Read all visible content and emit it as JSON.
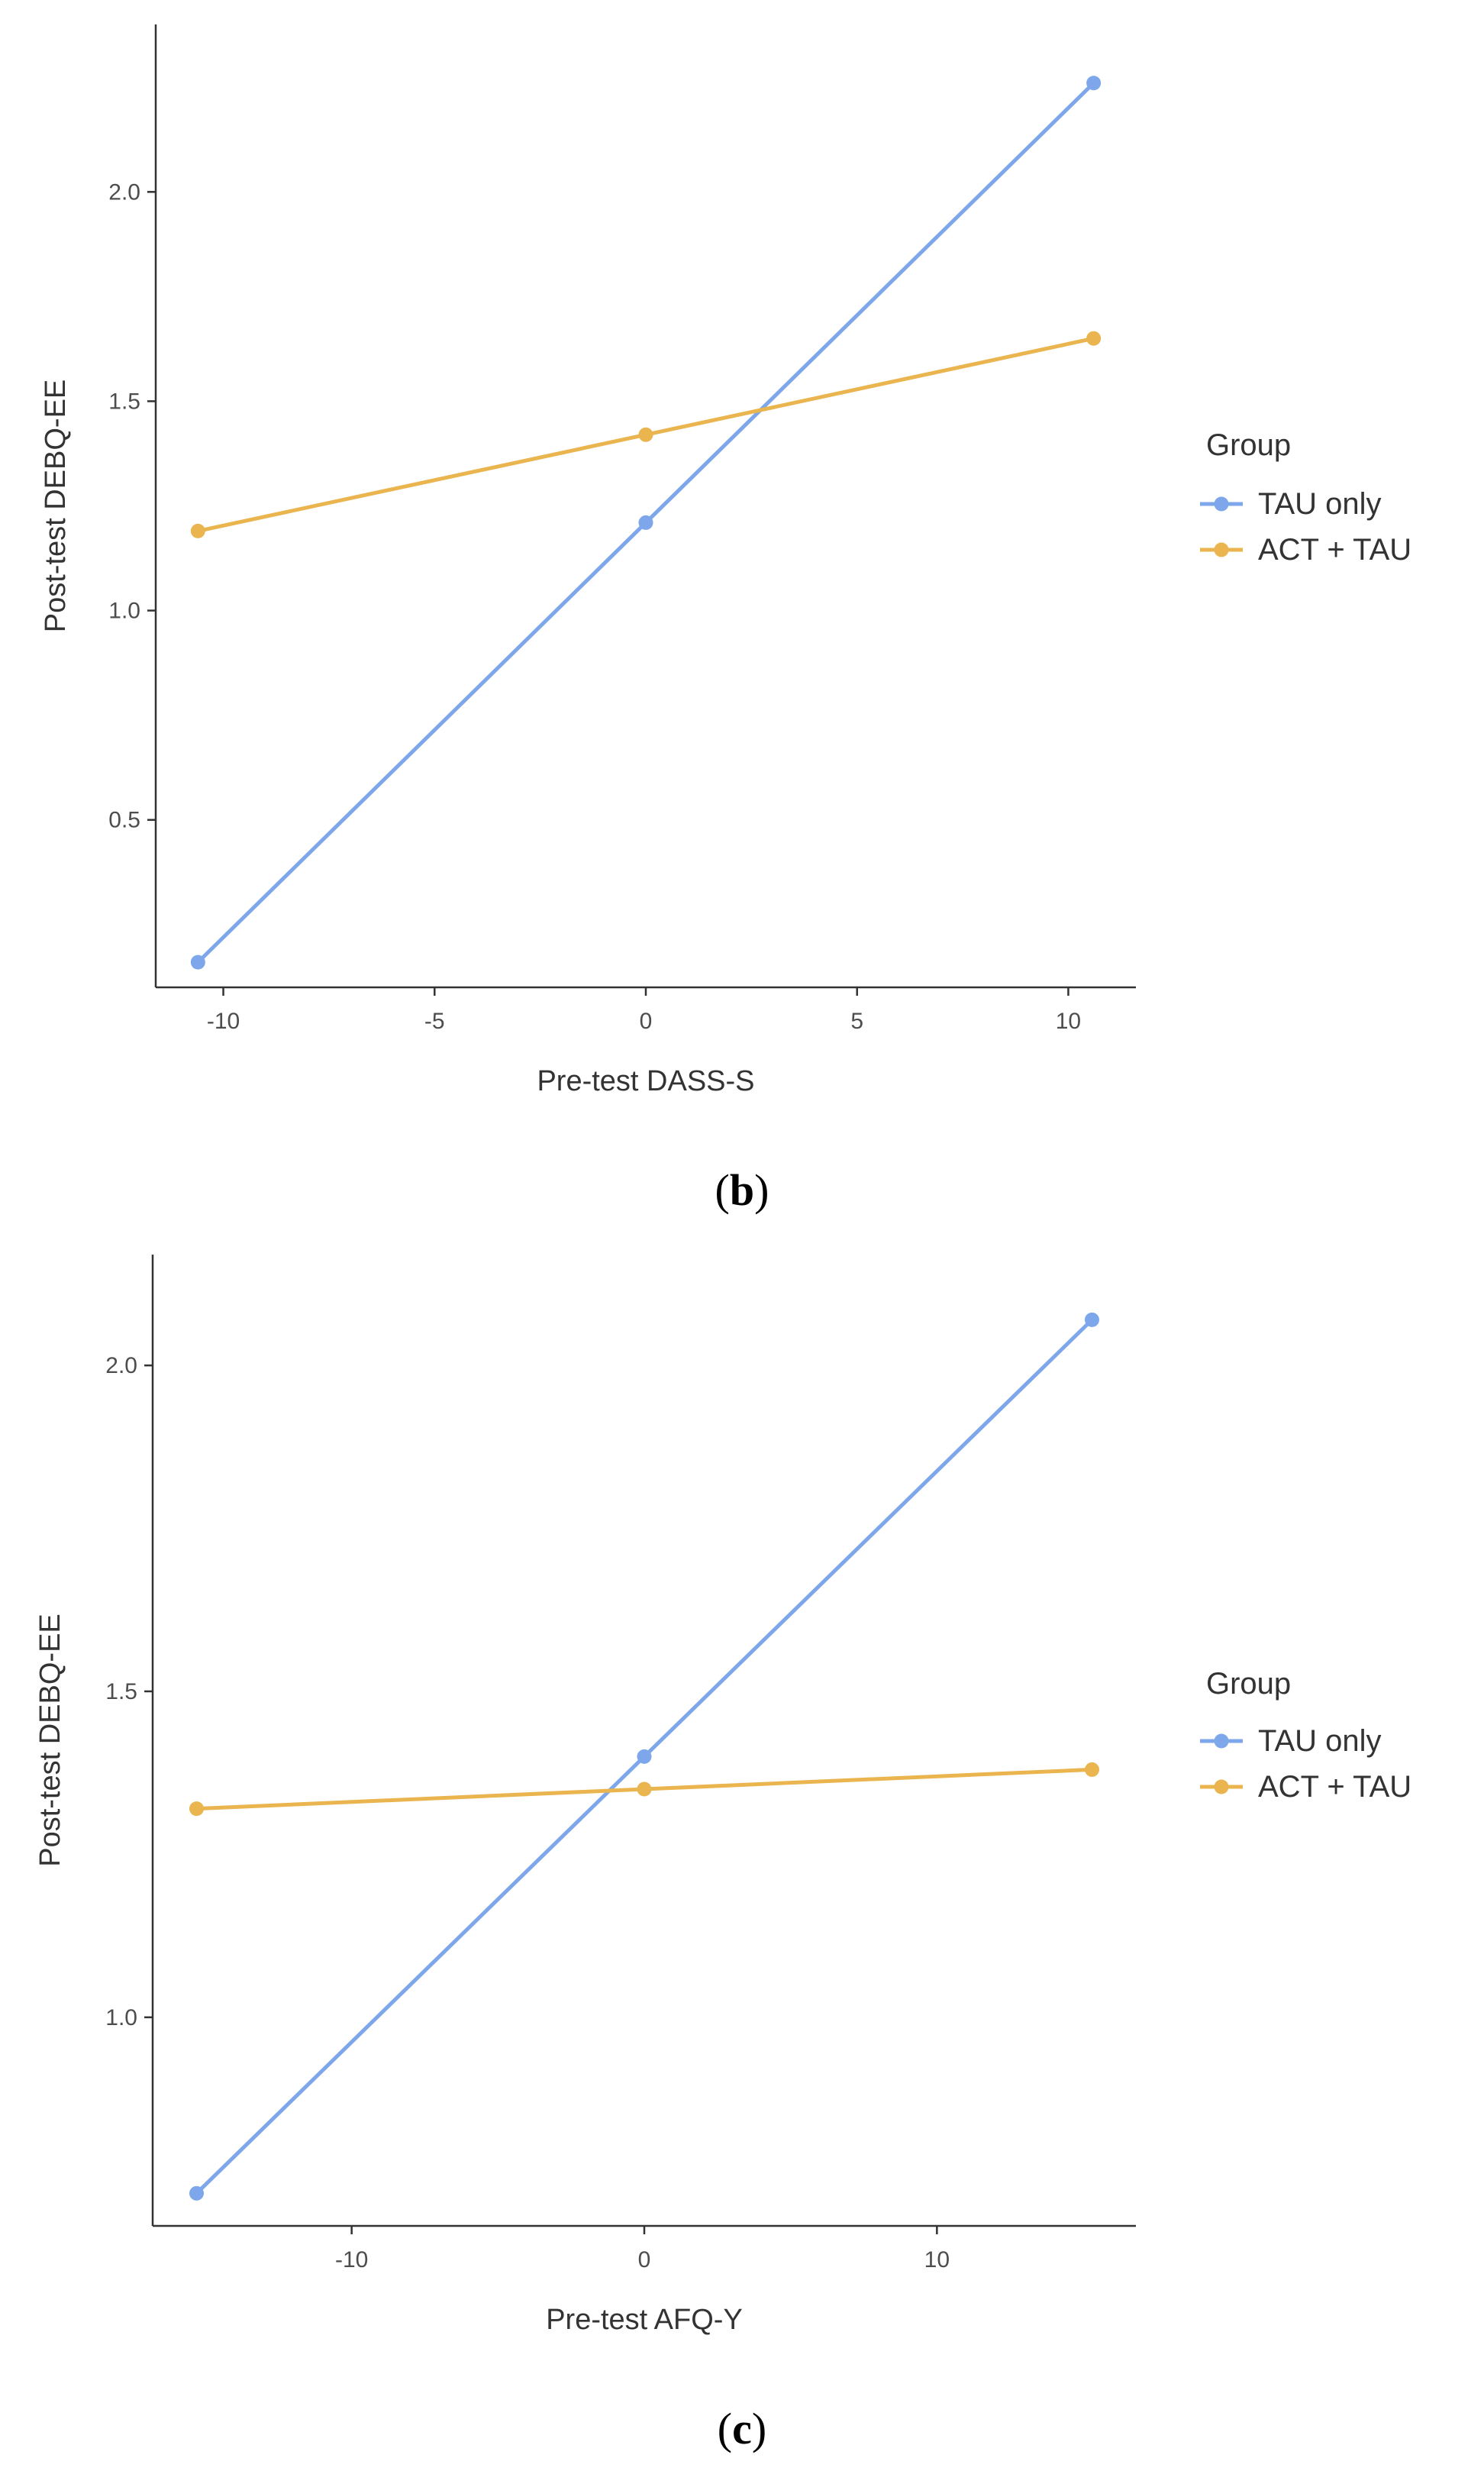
{
  "chart_data": [
    {
      "type": "line",
      "caption": {
        "open": "(",
        "letter": "b",
        "close": ")"
      },
      "xlabel": "Pre-test DASS-S",
      "ylabel": "Post-test DEBQ-EE",
      "xlim": [
        -11.6,
        11.6
      ],
      "ylim": [
        0.1,
        2.4
      ],
      "xticks": [
        -10,
        -5,
        0,
        5,
        10
      ],
      "xtick_labels": [
        "-10",
        "-5",
        "0",
        "5",
        "10"
      ],
      "yticks": [
        0.5,
        1.0,
        1.5,
        2.0
      ],
      "ytick_labels": [
        "0.5",
        "1.0",
        "1.5",
        "2.0"
      ],
      "legend": {
        "title": "Group",
        "position": "right"
      },
      "series": [
        {
          "name": "TAU only",
          "color": "#7da7ea",
          "x": [
            -10.6,
            0,
            10.6
          ],
          "y": [
            0.16,
            1.21,
            2.26
          ]
        },
        {
          "name": "ACT + TAU",
          "color": "#eab44f",
          "x": [
            -10.6,
            0,
            10.6
          ],
          "y": [
            1.19,
            1.42,
            1.65
          ]
        }
      ]
    },
    {
      "type": "line",
      "caption": {
        "open": "(",
        "letter": "c",
        "close": ")"
      },
      "xlabel": "Pre-test AFQ-Y",
      "ylabel": "Post-test DEBQ-EE",
      "xlim": [
        -16.8,
        16.8
      ],
      "ylim": [
        0.68,
        2.17
      ],
      "xticks": [
        -10,
        0,
        10
      ],
      "xtick_labels": [
        "-10",
        "0",
        "10"
      ],
      "yticks": [
        1.0,
        1.5,
        2.0
      ],
      "ytick_labels": [
        "1.0",
        "1.5",
        "2.0"
      ],
      "legend": {
        "title": "Group",
        "position": "right"
      },
      "series": [
        {
          "name": "TAU only",
          "color": "#7da7ea",
          "x": [
            -15.3,
            0,
            15.3
          ],
          "y": [
            0.73,
            1.4,
            2.07
          ]
        },
        {
          "name": "ACT + TAU",
          "color": "#eab44f",
          "x": [
            -15.3,
            0,
            15.3
          ],
          "y": [
            1.32,
            1.35,
            1.38
          ]
        }
      ]
    }
  ]
}
